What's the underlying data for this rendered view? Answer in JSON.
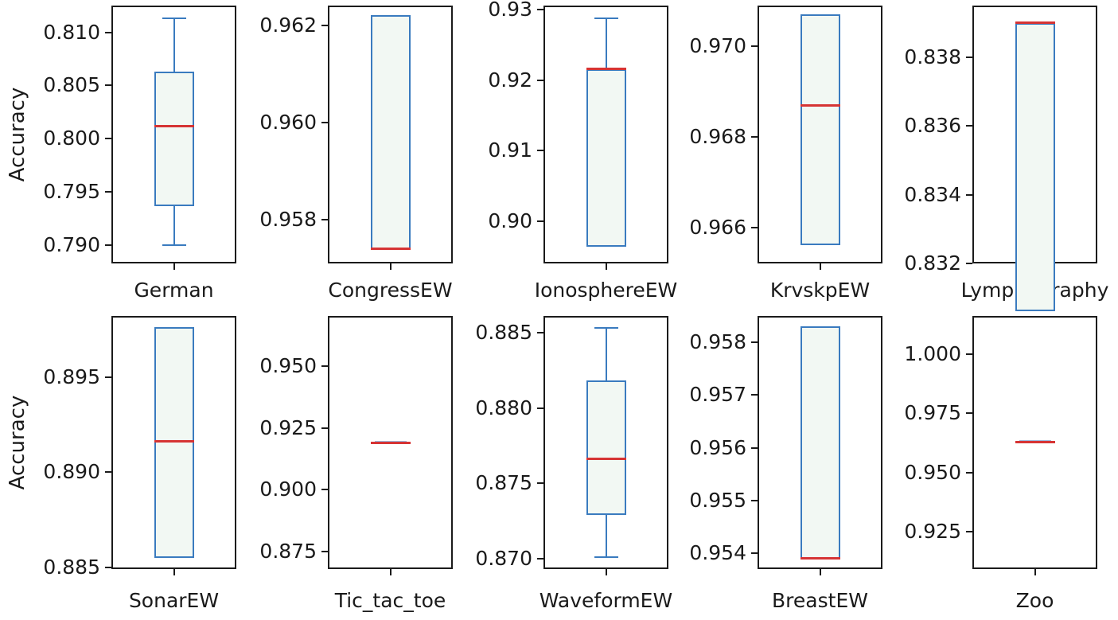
{
  "figure_title": "",
  "chart_data": {
    "type": "boxplot_grid",
    "rows": 2,
    "cols": 5,
    "ylabel": "Accuracy",
    "grid": false,
    "colors": {
      "box_edge": "#3a7bbf",
      "box_fill": "#f2f8f3",
      "median": "#d63434",
      "flat_underlay": "#9db8dc",
      "frame": "#1b1b1b",
      "text": "#1a1a1a"
    },
    "subplots": [
      {
        "label": "German",
        "row": 0,
        "col": 0,
        "show_ylabel": true,
        "ylim": [
          0.7883,
          0.8125
        ],
        "yticks": [
          "0.790",
          "0.795",
          "0.800",
          "0.805",
          "0.810"
        ],
        "box": {
          "whisker_low": 0.79,
          "q1": 0.7937,
          "median": 0.8012,
          "q3": 0.8063,
          "whisker_high": 0.8113
        }
      },
      {
        "label": "CongressEW",
        "row": 0,
        "col": 1,
        "show_ylabel": false,
        "ylim": [
          0.9571,
          0.9624
        ],
        "yticks": [
          "0.958",
          "0.960",
          "0.962"
        ],
        "box": {
          "whisker_low": 0.9574,
          "q1": 0.9574,
          "median": 0.9574,
          "q3": 0.9622,
          "whisker_high": 0.9622
        }
      },
      {
        "label": "IonosphereEW",
        "row": 0,
        "col": 2,
        "show_ylabel": false,
        "ylim": [
          0.894,
          0.9306
        ],
        "yticks": [
          "0.90",
          "0.91",
          "0.92",
          "0.93"
        ],
        "box": {
          "whisker_low": 0.8964,
          "q1": 0.8964,
          "median": 0.9216,
          "q3": 0.9216,
          "whisker_high": 0.9288
        }
      },
      {
        "label": "KrvskpEW",
        "row": 0,
        "col": 3,
        "show_ylabel": false,
        "ylim": [
          0.9652,
          0.9709
        ],
        "yticks": [
          "0.966",
          "0.968",
          "0.970"
        ],
        "box": {
          "whisker_low": 0.9656,
          "q1": 0.9656,
          "median": 0.9687,
          "q3": 0.9707,
          "whisker_high": 0.9707
        }
      },
      {
        "label": "Lymphography",
        "row": 0,
        "col": 4,
        "show_ylabel": false,
        "ylim": [
          0.832,
          0.8395
        ],
        "yticks": [
          "0.832",
          "0.834",
          "0.836",
          "0.838"
        ],
        "box": {
          "whisker_low": 0.8306,
          "q1": 0.8306,
          "median": 0.839,
          "q3": 0.839,
          "whisker_high": 0.839
        }
      },
      {
        "label": "SonarEW",
        "row": 1,
        "col": 0,
        "show_ylabel": true,
        "ylim": [
          0.8849,
          0.8982
        ],
        "yticks": [
          "0.885",
          "0.890",
          "0.895"
        ],
        "box": {
          "whisker_low": 0.8855,
          "q1": 0.8855,
          "median": 0.8916,
          "q3": 0.8976,
          "whisker_high": 0.8976
        }
      },
      {
        "label": "Tic_tac_toe",
        "row": 1,
        "col": 1,
        "show_ylabel": false,
        "ylim": [
          0.8679,
          0.9703
        ],
        "yticks": [
          "0.875",
          "0.900",
          "0.925",
          "0.950"
        ],
        "box": {
          "whisker_low": 0.9191,
          "q1": 0.9191,
          "median": 0.9191,
          "q3": 0.9191,
          "whisker_high": 0.9191
        }
      },
      {
        "label": "WaveformEW",
        "row": 1,
        "col": 2,
        "show_ylabel": false,
        "ylim": [
          0.8693,
          0.8861
        ],
        "yticks": [
          "0.870",
          "0.875",
          "0.880",
          "0.885"
        ],
        "box": {
          "whisker_low": 0.8701,
          "q1": 0.8729,
          "median": 0.8766,
          "q3": 0.8818,
          "whisker_high": 0.8853
        }
      },
      {
        "label": "BreastEW",
        "row": 1,
        "col": 3,
        "show_ylabel": false,
        "ylim": [
          0.9537,
          0.9585
        ],
        "yticks": [
          "0.954",
          "0.955",
          "0.956",
          "0.957",
          "0.958"
        ],
        "box": {
          "whisker_low": 0.9539,
          "q1": 0.9539,
          "median": 0.9539,
          "q3": 0.9583,
          "whisker_high": 0.9583
        }
      },
      {
        "label": "Zoo",
        "row": 1,
        "col": 4,
        "show_ylabel": false,
        "ylim": [
          0.9092,
          1.0161
        ],
        "yticks": [
          "0.925",
          "0.950",
          "0.975",
          "1.000"
        ],
        "box": {
          "whisker_low": 0.963,
          "q1": 0.963,
          "median": 0.963,
          "q3": 0.963,
          "whisker_high": 0.963
        }
      }
    ]
  }
}
